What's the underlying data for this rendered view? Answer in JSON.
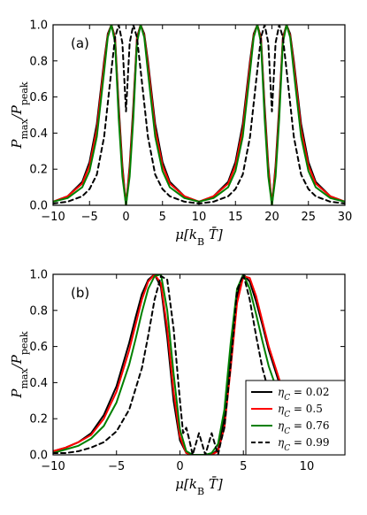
{
  "chart_data": [
    {
      "type": "line",
      "panel_label": "(a)",
      "xlabel": "μ[k_B T̄]",
      "ylabel": "P_max/P_peak",
      "xlim": [
        -10,
        30
      ],
      "ylim": [
        0,
        1.0
      ],
      "xticks": [
        "−10",
        "−5",
        "0",
        "5",
        "10",
        "15",
        "20",
        "25",
        "30"
      ],
      "yticks": [
        "0.0",
        "0.2",
        "0.4",
        "0.6",
        "0.8",
        "1.0"
      ],
      "series": [
        {
          "eta": 0.02,
          "color": "#000000",
          "style": "solid",
          "x": [
            -10,
            -8,
            -6,
            -5,
            -4,
            -3,
            -2.5,
            -2,
            -1.5,
            -1,
            -0.5,
            0,
            0.5,
            1,
            1.5,
            2,
            2.5,
            3,
            4,
            5,
            6,
            8,
            10,
            12,
            14,
            15,
            16,
            17,
            17.5,
            18,
            18.5,
            19,
            19.5,
            20,
            20.5,
            21,
            21.5,
            22,
            22.5,
            23,
            24,
            25,
            26,
            28,
            30
          ],
          "y": [
            0.02,
            0.05,
            0.13,
            0.24,
            0.45,
            0.8,
            0.95,
            1.0,
            0.93,
            0.55,
            0.22,
            0.0,
            0.22,
            0.55,
            0.93,
            1.0,
            0.95,
            0.8,
            0.45,
            0.24,
            0.13,
            0.05,
            0.02,
            0.05,
            0.13,
            0.24,
            0.45,
            0.8,
            0.95,
            1.0,
            0.93,
            0.55,
            0.22,
            0.0,
            0.22,
            0.55,
            0.93,
            1.0,
            0.95,
            0.8,
            0.45,
            0.24,
            0.13,
            0.05,
            0.02
          ]
        },
        {
          "eta": 0.5,
          "color": "#ff0000",
          "style": "solid",
          "x": [
            -10,
            -8,
            -6,
            -5,
            -4,
            -3,
            -2.5,
            -2,
            -1.5,
            -1,
            -0.5,
            0,
            0.5,
            1,
            1.5,
            2,
            2.5,
            3,
            4,
            5,
            6,
            8,
            10,
            12,
            14,
            15,
            16,
            17,
            17.5,
            18,
            18.5,
            19,
            19.5,
            20,
            20.5,
            21,
            21.5,
            22,
            22.5,
            23,
            24,
            25,
            26,
            28,
            30
          ],
          "y": [
            0.02,
            0.05,
            0.12,
            0.22,
            0.42,
            0.78,
            0.94,
            1.0,
            0.92,
            0.52,
            0.2,
            0.0,
            0.2,
            0.52,
            0.92,
            1.0,
            0.94,
            0.78,
            0.42,
            0.22,
            0.12,
            0.05,
            0.02,
            0.05,
            0.12,
            0.22,
            0.42,
            0.78,
            0.94,
            1.0,
            0.92,
            0.52,
            0.2,
            0.0,
            0.2,
            0.52,
            0.92,
            1.0,
            0.94,
            0.78,
            0.42,
            0.22,
            0.12,
            0.05,
            0.02
          ]
        },
        {
          "eta": 0.76,
          "color": "#008000",
          "style": "solid",
          "x": [
            -10,
            -8,
            -6,
            -5,
            -4,
            -3,
            -2.5,
            -2,
            -1.5,
            -1,
            -0.5,
            0,
            0.5,
            1,
            1.5,
            2,
            2.5,
            3,
            4,
            5,
            6,
            8,
            10,
            12,
            14,
            15,
            16,
            17,
            17.5,
            18,
            18.5,
            19,
            19.5,
            20,
            20.5,
            21,
            21.5,
            22,
            22.5,
            23,
            24,
            25,
            26,
            28,
            30
          ],
          "y": [
            0.02,
            0.04,
            0.1,
            0.19,
            0.38,
            0.74,
            0.93,
            1.0,
            0.9,
            0.48,
            0.16,
            0.0,
            0.16,
            0.48,
            0.9,
            1.0,
            0.93,
            0.74,
            0.38,
            0.19,
            0.1,
            0.04,
            0.02,
            0.04,
            0.1,
            0.19,
            0.38,
            0.74,
            0.93,
            1.0,
            0.9,
            0.48,
            0.16,
            0.0,
            0.16,
            0.48,
            0.9,
            1.0,
            0.93,
            0.74,
            0.38,
            0.19,
            0.1,
            0.04,
            0.02
          ]
        },
        {
          "eta": 0.99,
          "color": "#000000",
          "style": "dashed",
          "x": [
            -10,
            -8,
            -6,
            -5,
            -4,
            -3,
            -2,
            -1.5,
            -1,
            -0.5,
            0,
            0.5,
            1,
            1.5,
            2,
            3,
            4,
            5,
            6,
            8,
            10,
            12,
            14,
            15,
            16,
            17,
            18,
            18.5,
            19,
            19.5,
            20,
            20.5,
            21,
            21.5,
            22,
            23,
            24,
            25,
            26,
            28,
            30
          ],
          "y": [
            0.01,
            0.02,
            0.05,
            0.09,
            0.17,
            0.38,
            0.75,
            0.93,
            1.0,
            0.9,
            0.52,
            0.9,
            1.0,
            0.93,
            0.75,
            0.38,
            0.17,
            0.09,
            0.05,
            0.02,
            0.01,
            0.02,
            0.05,
            0.09,
            0.17,
            0.38,
            0.75,
            0.93,
            1.0,
            0.9,
            0.52,
            0.9,
            1.0,
            0.93,
            0.75,
            0.38,
            0.17,
            0.09,
            0.05,
            0.02,
            0.01
          ]
        }
      ]
    },
    {
      "type": "line",
      "panel_label": "(b)",
      "xlabel": "μ[k_B T̄]",
      "ylabel": "P_max/P_peak",
      "xlim": [
        -10,
        13
      ],
      "ylim": [
        0,
        1.0
      ],
      "xticks": [
        "−10",
        "−5",
        "0",
        "5",
        "10"
      ],
      "yticks": [
        "0.0",
        "0.2",
        "0.4",
        "0.6",
        "0.8",
        "1.0"
      ],
      "legend_position": "lower right",
      "series": [
        {
          "name": "η_C = 0.02",
          "color": "#000000",
          "style": "solid",
          "x": [
            -10,
            -9,
            -8,
            -7,
            -6,
            -5,
            -4,
            -3.5,
            -3,
            -2.5,
            -2,
            -1.5,
            -1,
            -0.5,
            0,
            0.5,
            1,
            1.5,
            2,
            2.5,
            3,
            3.5,
            4,
            4.5,
            5,
            5.5,
            6,
            6.5,
            7,
            8,
            9,
            10,
            11,
            12,
            13
          ],
          "y": [
            0.02,
            0.04,
            0.07,
            0.12,
            0.22,
            0.38,
            0.62,
            0.76,
            0.89,
            0.97,
            1.0,
            0.93,
            0.65,
            0.3,
            0.08,
            0.01,
            0.0,
            0.0,
            0.0,
            0.0,
            0.03,
            0.2,
            0.55,
            0.88,
            1.0,
            0.96,
            0.85,
            0.72,
            0.58,
            0.36,
            0.22,
            0.13,
            0.08,
            0.05,
            0.03
          ]
        },
        {
          "name": "η_C = 0.5",
          "color": "#ff0000",
          "style": "solid",
          "x": [
            -10,
            -9,
            -8,
            -7,
            -6,
            -5,
            -4,
            -3.5,
            -3,
            -2.5,
            -2,
            -1.5,
            -1,
            -0.5,
            0,
            0.5,
            1,
            1.5,
            2,
            2.5,
            3,
            3.5,
            4,
            4.5,
            5,
            5.5,
            6,
            6.5,
            7,
            8,
            9,
            10,
            11,
            12,
            13
          ],
          "y": [
            0.02,
            0.04,
            0.07,
            0.11,
            0.2,
            0.35,
            0.58,
            0.72,
            0.86,
            0.96,
            1.0,
            0.95,
            0.7,
            0.35,
            0.1,
            0.01,
            0.0,
            0.0,
            0.0,
            0.0,
            0.02,
            0.15,
            0.48,
            0.84,
            0.99,
            0.98,
            0.88,
            0.74,
            0.6,
            0.38,
            0.23,
            0.13,
            0.08,
            0.05,
            0.03
          ]
        },
        {
          "name": "η_C = 0.76",
          "color": "#008000",
          "style": "solid",
          "x": [
            -10,
            -9,
            -8,
            -7,
            -6,
            -5,
            -4,
            -3.5,
            -3,
            -2.5,
            -2,
            -1.5,
            -1,
            -0.5,
            0,
            0.5,
            1,
            1.5,
            2,
            2.5,
            3,
            3.5,
            4,
            4.5,
            5,
            5.5,
            6,
            6.5,
            7,
            8,
            9,
            10,
            11,
            12,
            13
          ],
          "y": [
            0.01,
            0.03,
            0.05,
            0.09,
            0.16,
            0.29,
            0.5,
            0.64,
            0.79,
            0.92,
            0.99,
            1.0,
            0.8,
            0.45,
            0.14,
            0.02,
            0.0,
            0.0,
            0.0,
            0.01,
            0.06,
            0.25,
            0.62,
            0.92,
            1.0,
            0.92,
            0.78,
            0.63,
            0.49,
            0.29,
            0.16,
            0.09,
            0.05,
            0.03,
            0.02
          ]
        },
        {
          "name": "η_C = 0.99",
          "color": "#000000",
          "style": "dashed",
          "x": [
            -10,
            -9,
            -8,
            -7,
            -6,
            -5,
            -4,
            -3,
            -2.5,
            -2,
            -1.5,
            -1,
            -0.5,
            0,
            0.25,
            0.5,
            0.75,
            1,
            1.25,
            1.5,
            1.75,
            2,
            2.25,
            2.5,
            2.75,
            3,
            3.25,
            3.5,
            4,
            4.5,
            5,
            5.5,
            6,
            6.5,
            7,
            8,
            9,
            10,
            11,
            12,
            13
          ],
          "y": [
            0.01,
            0.01,
            0.02,
            0.04,
            0.07,
            0.13,
            0.25,
            0.48,
            0.66,
            0.86,
            0.99,
            0.97,
            0.7,
            0.3,
            0.12,
            0.15,
            0.08,
            0.0,
            0.06,
            0.12,
            0.06,
            0.0,
            0.06,
            0.12,
            0.06,
            0.0,
            0.08,
            0.15,
            0.5,
            0.91,
            1.0,
            0.86,
            0.66,
            0.48,
            0.35,
            0.18,
            0.09,
            0.05,
            0.03,
            0.02,
            0.01
          ]
        }
      ]
    }
  ]
}
